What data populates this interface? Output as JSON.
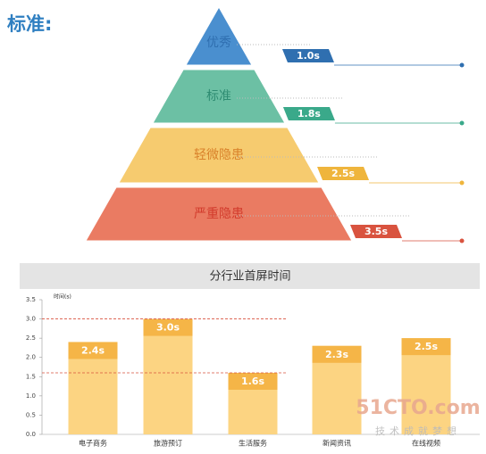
{
  "chart_data": [
    {
      "type": "pyramid",
      "title": "标准:",
      "categories": [
        "优秀",
        "标准",
        "轻微隐患",
        "严重隐患"
      ],
      "values": [
        1.0,
        1.8,
        2.5,
        3.5
      ],
      "value_labels": [
        "1.0s",
        "1.8s",
        "2.5s",
        "3.5s"
      ],
      "colors": [
        "#4a8fcf",
        "#6cc0a4",
        "#f6cb6f",
        "#ea7b62"
      ],
      "tag_colors": [
        "#2f6fb0",
        "#3aa98a",
        "#efb53c",
        "#d9533f"
      ],
      "label_colors": [
        "#2f6fb0",
        "#2e8c72",
        "#d9822b",
        "#d23b2c"
      ]
    },
    {
      "type": "bar",
      "title": "分行业首屏时间",
      "y_label": "时间(s)",
      "categories": [
        "电子商务",
        "旅游预订",
        "生活服务",
        "新闻资讯",
        "在线视频"
      ],
      "values": [
        2.4,
        3.0,
        1.6,
        2.3,
        2.5
      ],
      "value_labels": [
        "2.4s",
        "3.0s",
        "1.6s",
        "2.3s",
        "2.5s"
      ],
      "color": "#fcd482",
      "label_color": "#f5b547",
      "ylim": [
        0,
        3.5
      ],
      "yticks": [
        {
          "value": 0,
          "label": "0.0"
        },
        0.5,
        {
          "value": 1,
          "label": "1.0"
        },
        1.5,
        {
          "value": 2,
          "label": "2.0"
        },
        2.5,
        {
          "value": 3,
          "label": "3.0"
        },
        3.5
      ],
      "reference_lines": [
        3.0,
        1.6
      ],
      "watermark": [
        "51CTO.com",
        "技术成就梦想"
      ]
    }
  ]
}
